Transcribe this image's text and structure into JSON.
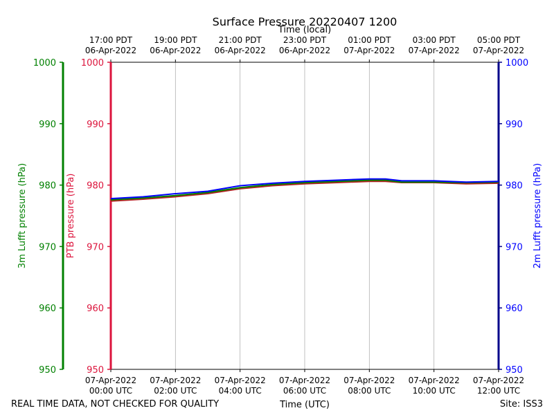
{
  "chart_data": {
    "type": "line",
    "title": "Surface Pressure 20220407 1200",
    "xlabel_bottom": "Time (UTC)",
    "xlabel_top": "Time (local)",
    "ylabel_left_outer": "3m Lufft pressure (hPa)",
    "ylabel_left_inner": "PTB pressure (hPa)",
    "ylabel_right": "2m Lufft pressure (hPa)",
    "ylim": [
      950,
      1000
    ],
    "yticks": [
      "950",
      "960",
      "970",
      "980",
      "990",
      "1000"
    ],
    "xlim_hours": [
      0,
      12
    ],
    "grid_x": true,
    "grid_y": false,
    "bottom_ticks": [
      {
        "date": "07-Apr-2022",
        "time": "00:00 UTC"
      },
      {
        "date": "07-Apr-2022",
        "time": "02:00 UTC"
      },
      {
        "date": "07-Apr-2022",
        "time": "04:00 UTC"
      },
      {
        "date": "07-Apr-2022",
        "time": "06:00 UTC"
      },
      {
        "date": "07-Apr-2022",
        "time": "08:00 UTC"
      },
      {
        "date": "07-Apr-2022",
        "time": "10:00 UTC"
      },
      {
        "date": "07-Apr-2022",
        "time": "12:00 UTC"
      }
    ],
    "top_ticks": [
      {
        "time": "17:00 PDT",
        "date": "06-Apr-2022"
      },
      {
        "time": "19:00 PDT",
        "date": "06-Apr-2022"
      },
      {
        "time": "21:00 PDT",
        "date": "06-Apr-2022"
      },
      {
        "time": "23:00 PDT",
        "date": "06-Apr-2022"
      },
      {
        "time": "01:00 PDT",
        "date": "07-Apr-2022"
      },
      {
        "time": "03:00 PDT",
        "date": "07-Apr-2022"
      },
      {
        "time": "05:00 PDT",
        "date": "07-Apr-2022"
      }
    ],
    "x_hours": [
      0,
      1,
      2,
      3,
      4,
      5,
      6,
      7,
      8,
      8.5,
      9,
      10,
      11,
      12
    ],
    "series": [
      {
        "color": "#b22222",
        "values": [
          977.4,
          977.7,
          978.1,
          978.6,
          979.4,
          979.9,
          980.2,
          980.4,
          980.6,
          980.6,
          980.4,
          980.4,
          980.2,
          980.3
        ]
      },
      {
        "color": "#008000",
        "values": [
          977.6,
          977.9,
          978.3,
          978.8,
          979.6,
          980.1,
          980.4,
          980.6,
          980.8,
          980.8,
          980.5,
          980.5,
          980.4,
          980.5
        ]
      },
      {
        "color": "#0000ff",
        "values": [
          977.8,
          978.1,
          978.6,
          979.0,
          979.9,
          980.3,
          980.6,
          980.8,
          981.0,
          981.0,
          980.7,
          980.7,
          980.5,
          980.6
        ]
      }
    ],
    "axis_colors": {
      "left_outer": "#008000",
      "left_inner": "#dc143c",
      "right": "#00008b",
      "right_labels": "#0000ff"
    }
  },
  "footer": {
    "left": "REAL TIME DATA, NOT CHECKED FOR QUALITY",
    "right": "Site: ISS3"
  }
}
